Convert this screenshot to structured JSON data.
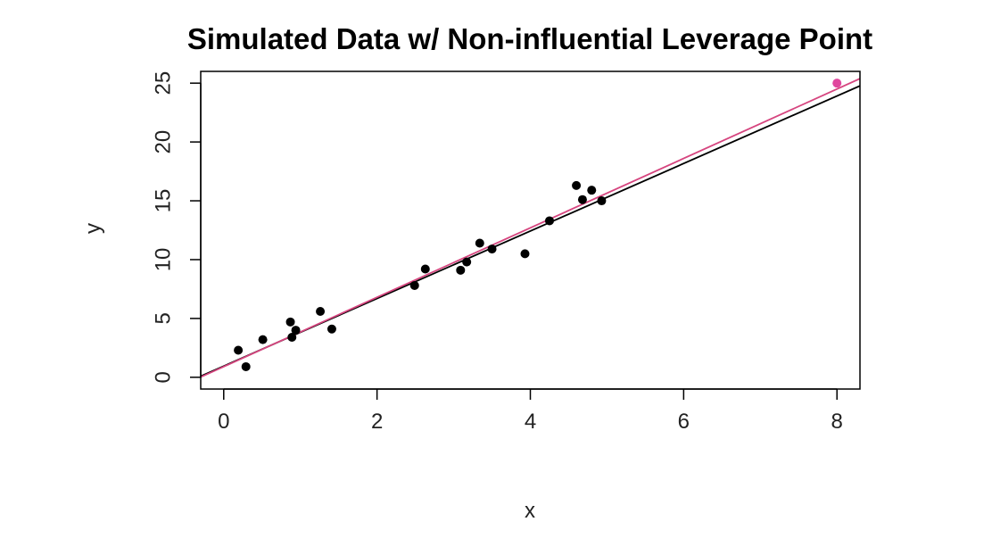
{
  "chart_data": {
    "type": "scatter",
    "title": "Simulated Data w/ Non-influential Leverage Point",
    "xlabel": "x",
    "ylabel": "y",
    "xlim": [
      -0.3,
      8.3
    ],
    "ylim": [
      -1.0,
      26.0
    ],
    "xticks": [
      0,
      2,
      4,
      6,
      8
    ],
    "yticks": [
      0,
      5,
      10,
      15,
      20,
      25
    ],
    "grid": false,
    "series": [
      {
        "color": "#000000",
        "points": [
          {
            "x": 0.19,
            "y": 2.3
          },
          {
            "x": 0.29,
            "y": 0.9
          },
          {
            "x": 0.51,
            "y": 3.2
          },
          {
            "x": 0.87,
            "y": 4.7
          },
          {
            "x": 0.89,
            "y": 3.4
          },
          {
            "x": 0.94,
            "y": 4.0
          },
          {
            "x": 1.26,
            "y": 5.6
          },
          {
            "x": 1.41,
            "y": 4.1
          },
          {
            "x": 2.49,
            "y": 7.8
          },
          {
            "x": 2.63,
            "y": 9.2
          },
          {
            "x": 3.09,
            "y": 9.1
          },
          {
            "x": 3.17,
            "y": 9.8
          },
          {
            "x": 3.34,
            "y": 11.4
          },
          {
            "x": 3.5,
            "y": 10.9
          },
          {
            "x": 3.93,
            "y": 10.5
          },
          {
            "x": 4.25,
            "y": 13.3
          },
          {
            "x": 4.6,
            "y": 16.3
          },
          {
            "x": 4.68,
            "y": 15.1
          },
          {
            "x": 4.8,
            "y": 15.9
          },
          {
            "x": 4.93,
            "y": 15.0
          }
        ]
      },
      {
        "color": "#e0479e",
        "points": [
          {
            "x": 8.0,
            "y": 25.0
          }
        ]
      }
    ],
    "lines": [
      {
        "color": "#000000",
        "intercept": 0.95,
        "slope": 2.87
      },
      {
        "color": "#d6457f",
        "intercept": 0.9,
        "slope": 2.95
      }
    ]
  }
}
